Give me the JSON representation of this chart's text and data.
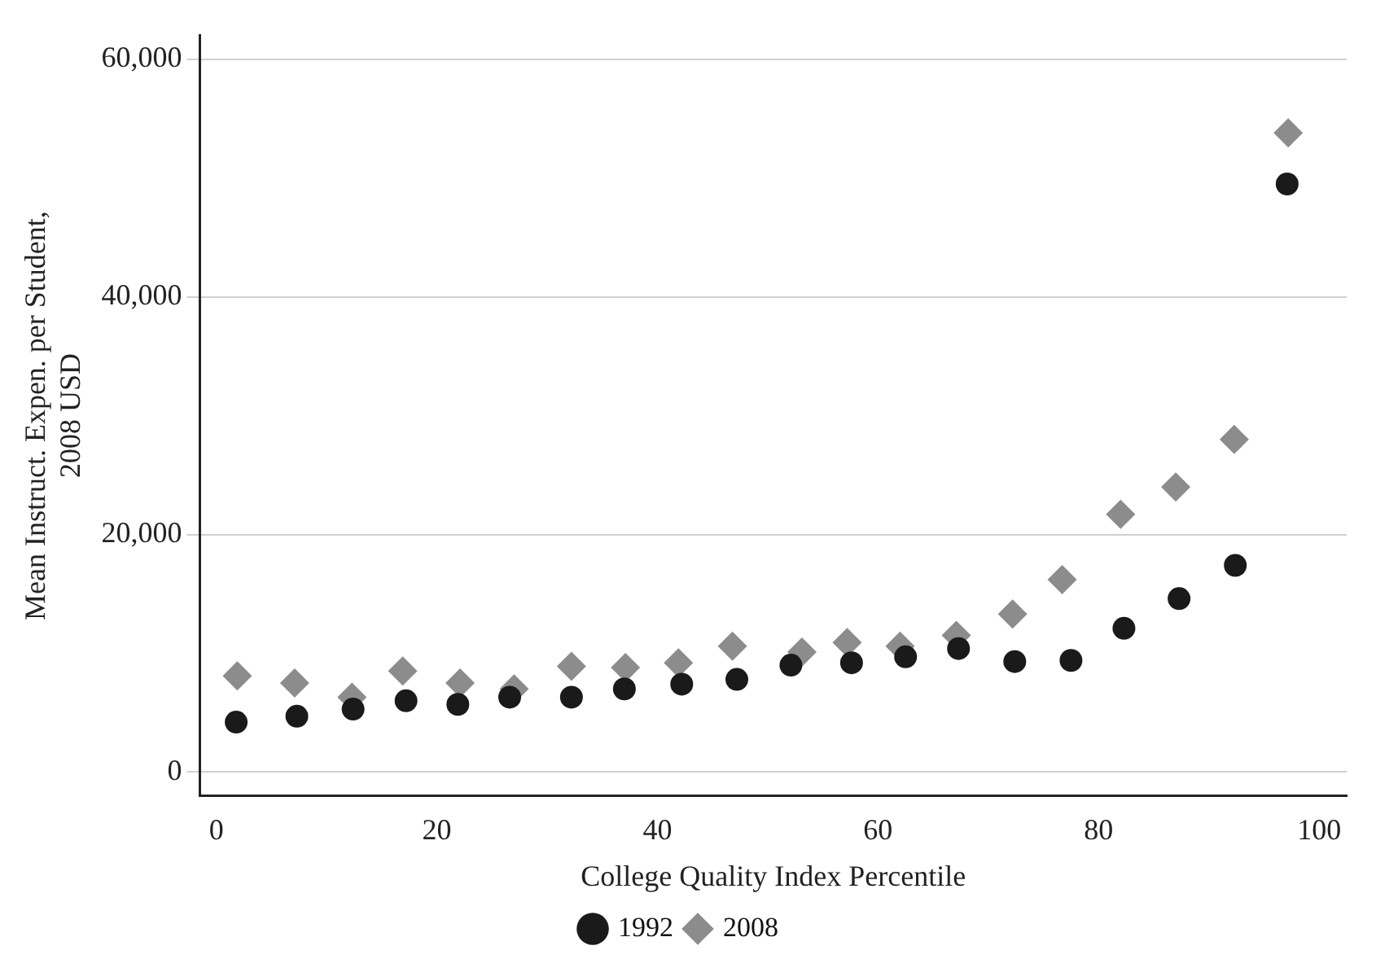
{
  "chart_data": {
    "type": "scatter",
    "xlabel": "College Quality Index Percentile",
    "ylabel": "Mean Instruct. Expen. per Student,\n2008 USD",
    "xlim": [
      -1.5,
      102.5
    ],
    "ylim": [
      -2000,
      62000
    ],
    "xticks": [
      0,
      20,
      40,
      60,
      80,
      100
    ],
    "yticks": [
      {
        "value": 0,
        "label": "0"
      },
      {
        "value": 20000,
        "label": "20,000"
      },
      {
        "value": 40000,
        "label": "40,000"
      },
      {
        "value": 60000,
        "label": "60,000"
      }
    ],
    "grid": "y",
    "legend": "bottom",
    "series": [
      {
        "name": "1992",
        "color": "#1a1a1a",
        "marker": "circle",
        "x": [
          1.8,
          7.3,
          12.4,
          17.2,
          21.9,
          26.6,
          32.2,
          37,
          42.2,
          47.2,
          52.1,
          57.6,
          62.5,
          67.3,
          72.4,
          77.5,
          82.3,
          87.3,
          92.4,
          97.1
        ],
        "values": [
          4200,
          4700,
          5300,
          6000,
          5700,
          6300,
          6300,
          7000,
          7400,
          7800,
          9000,
          9200,
          9700,
          10400,
          9300,
          9400,
          12100,
          14600,
          17400,
          49500
        ]
      },
      {
        "name": "2008",
        "color": "#8c8c8c",
        "marker": "diamond",
        "x": [
          1.9,
          7.1,
          12.3,
          16.9,
          22.1,
          27,
          32.2,
          37.1,
          41.9,
          46.8,
          53.1,
          57.2,
          62,
          67.1,
          72.2,
          76.7,
          82,
          87,
          92.3,
          97.2
        ],
        "values": [
          8100,
          7500,
          6300,
          8500,
          7500,
          7000,
          8900,
          8800,
          9200,
          10600,
          10100,
          10900,
          10600,
          11500,
          13300,
          16200,
          21700,
          24000,
          28000,
          53800
        ]
      }
    ]
  }
}
